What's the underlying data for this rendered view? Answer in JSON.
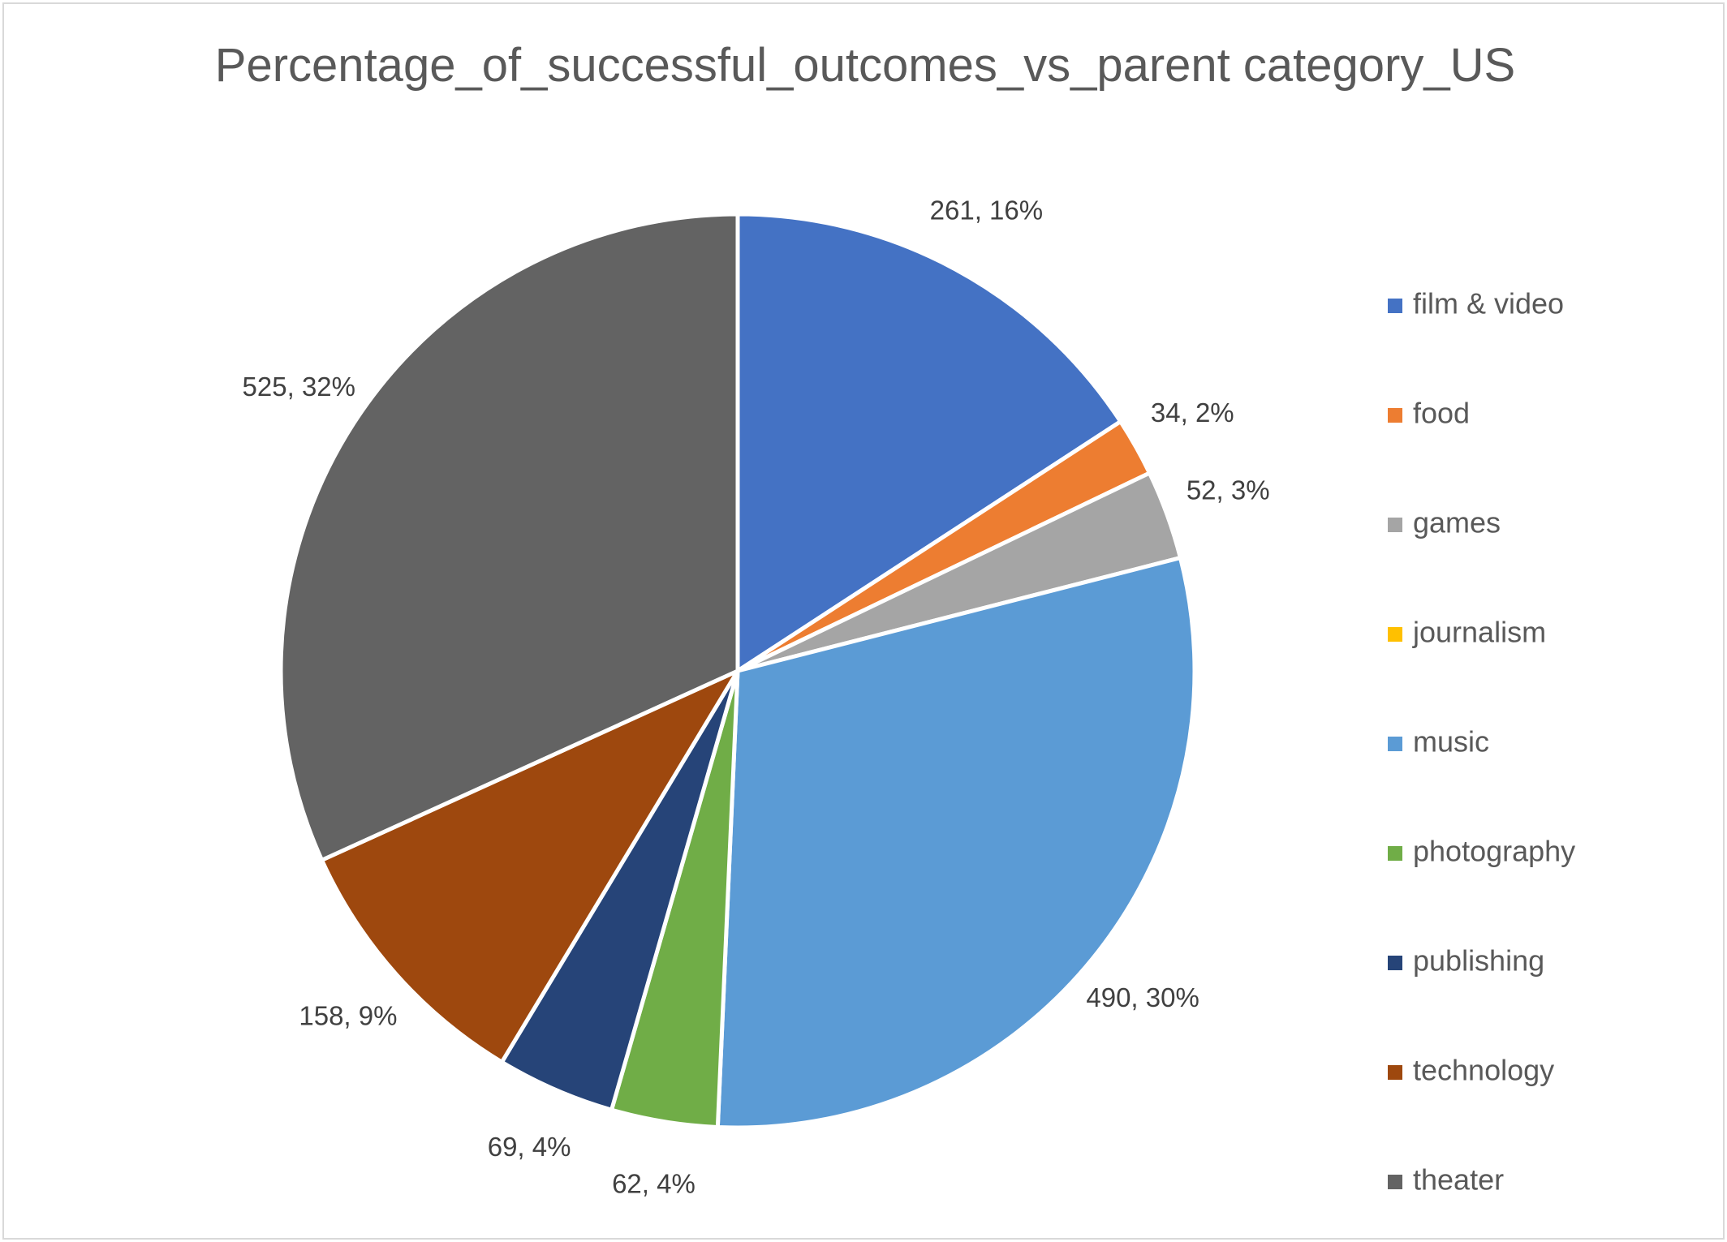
{
  "chart_data": {
    "type": "pie",
    "title": "Percentage_of_successful_outcomes_vs_parent category_US",
    "legend_position": "right",
    "slices": [
      {
        "name": "film & video",
        "value": 261,
        "label": "261, 16%",
        "color": "#4472C4"
      },
      {
        "name": "food",
        "value": 34,
        "label": "34, 2%",
        "color": "#ED7D31"
      },
      {
        "name": "games",
        "value": 52,
        "label": "52, 3%",
        "color": "#A5A5A5"
      },
      {
        "name": "journalism",
        "value": 0,
        "label": "",
        "color": "#FFC000"
      },
      {
        "name": "music",
        "value": 490,
        "label": "490, 30%",
        "color": "#5B9BD5"
      },
      {
        "name": "photography",
        "value": 62,
        "label": "62, 4%",
        "color": "#70AD47"
      },
      {
        "name": "publishing",
        "value": 69,
        "label": "69, 4%",
        "color": "#264478"
      },
      {
        "name": "technology",
        "value": 158,
        "label": "158, 9%",
        "color": "#9E480E"
      },
      {
        "name": "theater",
        "value": 525,
        "label": "525, 32%",
        "color": "#636363"
      }
    ]
  }
}
